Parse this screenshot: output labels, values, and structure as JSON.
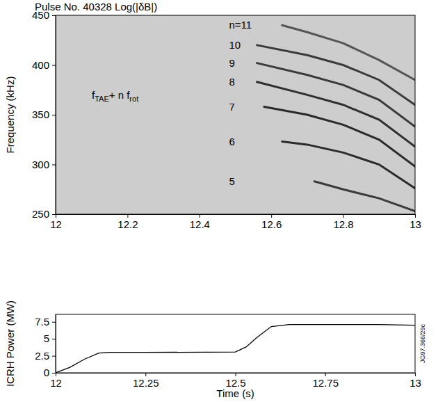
{
  "chart_data": [
    {
      "type": "spectrogram",
      "title": "Pulse No. 40328  Log(|δB|)",
      "ylabel": "Frequency (kHz)",
      "annotations": [
        [
          "f",
          "TAE",
          "+ n f",
          "rot"
        ]
      ],
      "xlim": [
        12,
        13
      ],
      "xticks": [
        12,
        12.2,
        12.4,
        12.6,
        12.8,
        13
      ],
      "ylim": [
        250,
        450
      ],
      "yticks": [
        250,
        300,
        350,
        400,
        450
      ],
      "series": [
        {
          "name": "n=11",
          "color": "#555555",
          "x": [
            12.63,
            12.7,
            12.8,
            12.9,
            13
          ],
          "values": [
            440,
            433,
            422,
            405,
            385
          ]
        },
        {
          "name": "10",
          "color": "#3a3a3a",
          "x": [
            12.56,
            12.7,
            12.8,
            12.9,
            13
          ],
          "values": [
            420,
            410,
            400,
            385,
            360
          ]
        },
        {
          "name": "9",
          "color": "#3a3a3a",
          "x": [
            12.56,
            12.7,
            12.8,
            12.9,
            13
          ],
          "values": [
            402,
            390,
            380,
            365,
            338
          ]
        },
        {
          "name": "8",
          "color": "#2f2f2f",
          "x": [
            12.56,
            12.7,
            12.8,
            12.9,
            13
          ],
          "values": [
            383,
            370,
            360,
            345,
            318
          ]
        },
        {
          "name": "7",
          "color": "#2a2a2a",
          "x": [
            12.58,
            12.7,
            12.8,
            12.9,
            13
          ],
          "values": [
            358,
            350,
            340,
            325,
            298
          ]
        },
        {
          "name": "6",
          "color": "#2a2a2a",
          "x": [
            12.63,
            12.7,
            12.8,
            12.9,
            13
          ],
          "values": [
            323,
            320,
            312,
            300,
            276
          ]
        },
        {
          "name": "5",
          "color": "#3a3a3a",
          "x": [
            12.72,
            12.8,
            12.9,
            13
          ],
          "values": [
            283,
            275,
            266,
            253
          ]
        }
      ]
    },
    {
      "type": "line",
      "ylabel": "ICRH Power (MW)",
      "xlabel": "Time (s)",
      "annotations": [
        "JG97.366/29c"
      ],
      "xlim": [
        12,
        13
      ],
      "xticks": [
        12,
        12.25,
        12.5,
        12.75,
        13
      ],
      "ylim": [
        0,
        8.6
      ],
      "yticks": [
        0,
        2.5,
        5,
        7.5
      ],
      "color": "#000000",
      "x": [
        12,
        12.04,
        12.08,
        12.12,
        12.15,
        12.25,
        12.5,
        12.53,
        12.56,
        12.6,
        12.65,
        12.75,
        12.9,
        13
      ],
      "values": [
        0,
        0.8,
        2.0,
        2.9,
        3.0,
        3.0,
        3.05,
        3.8,
        5.2,
        6.8,
        7.1,
        7.1,
        7.1,
        7.0
      ]
    }
  ]
}
